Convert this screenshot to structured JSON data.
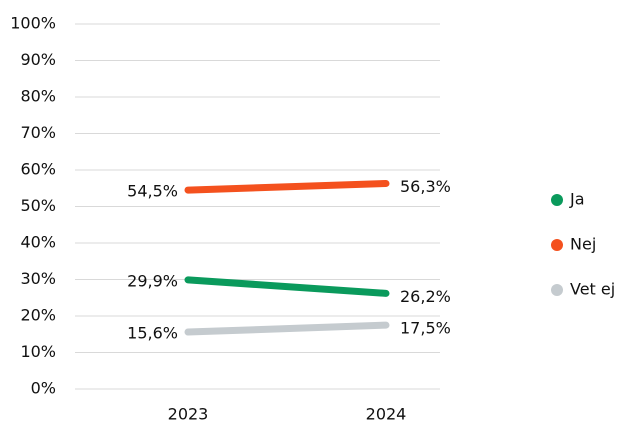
{
  "chart_data": {
    "type": "line",
    "categories": [
      "2023",
      "2024"
    ],
    "series": [
      {
        "name": "Ja",
        "color": "#0a9a5c",
        "values": [
          29.9,
          26.2
        ],
        "value_labels": [
          "29,9%",
          "26,2%"
        ]
      },
      {
        "name": "Nej",
        "color": "#f4511e",
        "values": [
          54.5,
          56.3
        ],
        "value_labels": [
          "54,5%",
          "56,3%"
        ]
      },
      {
        "name": "Vet ej",
        "color": "#c5cbcf",
        "values": [
          15.6,
          17.5
        ],
        "value_labels": [
          "15,6%",
          "17,5%"
        ]
      }
    ],
    "ylim": [
      0,
      100
    ],
    "yticks": [
      {
        "value": 0,
        "label": "0%"
      },
      {
        "value": 10,
        "label": "10%"
      },
      {
        "value": 20,
        "label": "20%"
      },
      {
        "value": 30,
        "label": "30%"
      },
      {
        "value": 40,
        "label": "40%"
      },
      {
        "value": 50,
        "label": "50%"
      },
      {
        "value": 60,
        "label": "60%"
      },
      {
        "value": 70,
        "label": "70%"
      },
      {
        "value": 80,
        "label": "80%"
      },
      {
        "value": 90,
        "label": "90%"
      },
      {
        "value": 100,
        "label": "100%"
      }
    ],
    "grid": true,
    "legend": "right"
  }
}
